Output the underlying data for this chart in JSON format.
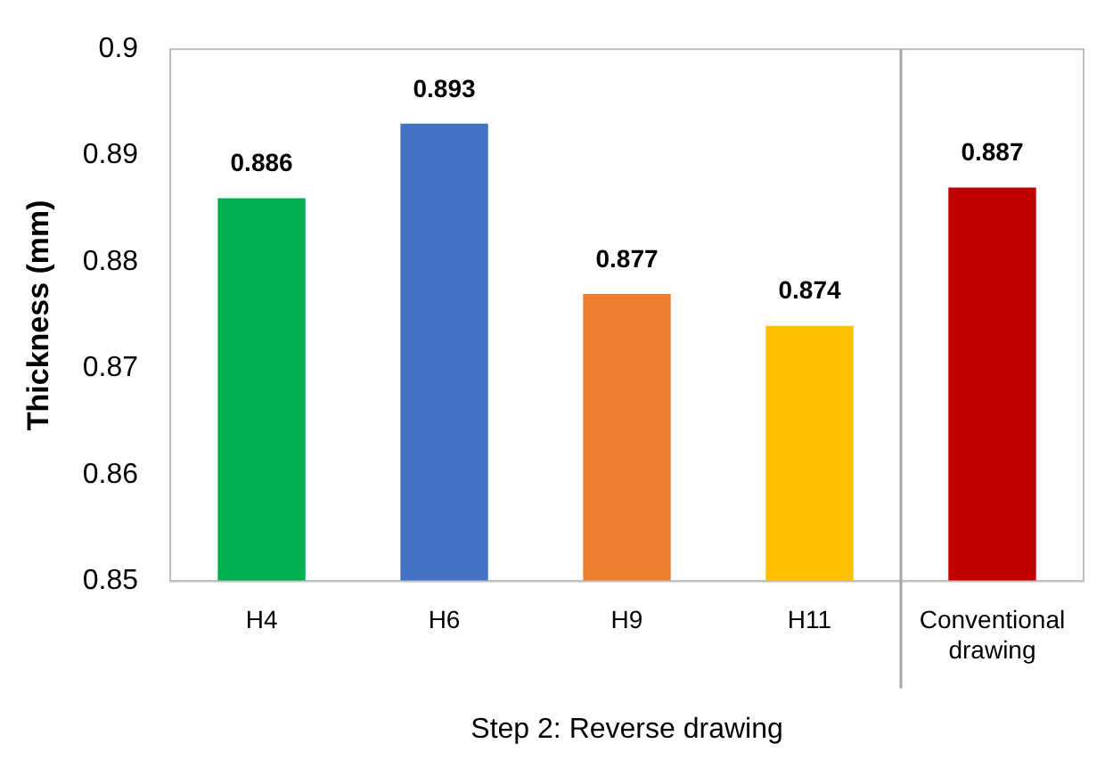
{
  "chart_data": {
    "type": "bar",
    "xlabel": "Step 2: Reverse drawing",
    "ylabel": "Thickness (mm)",
    "categories": [
      "H4",
      "H6",
      "H9",
      "H11",
      "Conventional drawing"
    ],
    "values": [
      0.886,
      0.893,
      0.877,
      0.874,
      0.887
    ],
    "colors": [
      "#00b050",
      "#4472c4",
      "#ed7d31",
      "#ffc000",
      "#c00000"
    ],
    "ylim": [
      0.85,
      0.9
    ],
    "yticks": [
      0.85,
      0.86,
      0.87,
      0.88,
      0.89,
      0.9
    ],
    "data_labels": true,
    "grid": false,
    "legend": false
  }
}
